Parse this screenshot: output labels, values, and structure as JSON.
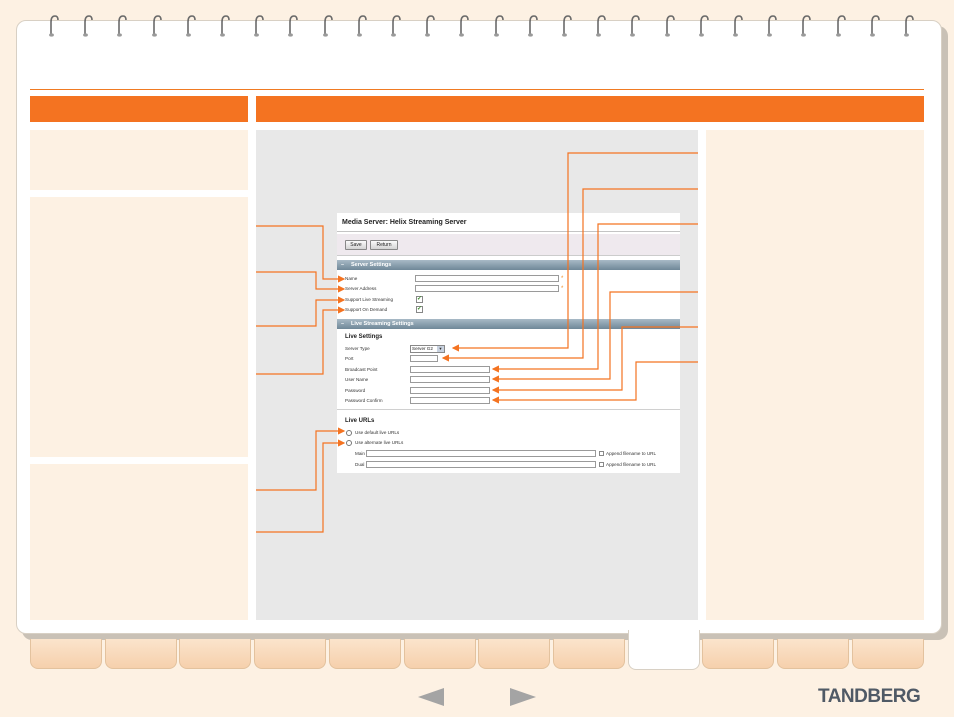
{
  "colors": {
    "accent": "#f47321",
    "panel": "#fdf1e3",
    "page": "#ffffff",
    "screenshot_area": "#e8e8e8",
    "section_header": "#6f8898",
    "check_green": "#3a8a2a"
  },
  "screenshot": {
    "title": "Media Server: Helix Streaming Server",
    "buttons": {
      "save": "Save",
      "return": "Return"
    },
    "server_settings": {
      "header": "Server Settings",
      "fields": [
        {
          "label": "Name",
          "value": "",
          "required": "*"
        },
        {
          "label": "Server Address",
          "value": "",
          "required": "*"
        }
      ],
      "checkboxes": [
        {
          "label": "Support Live Streaming",
          "checked": true
        },
        {
          "label": "Support On Demand",
          "checked": true
        }
      ]
    },
    "live_streaming_settings": {
      "header": "Live Streaming Settings",
      "subheader": "Live Settings",
      "server_type_label": "Server Type",
      "server_type_value": "Server G2",
      "fields": [
        {
          "label": "Port",
          "value": ""
        },
        {
          "label": "Broadcast Point",
          "value": ""
        },
        {
          "label": "User Name",
          "value": ""
        },
        {
          "label": "Password",
          "value": ""
        },
        {
          "label": "Password Confirm",
          "value": ""
        }
      ]
    },
    "live_urls": {
      "subheader": "Live URLs",
      "options": [
        "Use default live URLs",
        "Use alternate live URLs"
      ],
      "rows": [
        {
          "label": "Main",
          "value": "",
          "append_label": "Append filename to URL"
        },
        {
          "label": "Dual",
          "value": "",
          "append_label": "Append filename to URL"
        }
      ]
    }
  },
  "icons": {
    "prev": "arrow-left-icon",
    "next": "arrow-right-icon",
    "ring": "binder-ring-icon",
    "collapse": "section-minus-icon",
    "check": "checkmark-icon",
    "dropdown": "chevron-down-icon"
  },
  "footer": {
    "brand": "TANDBERG",
    "active_tab_index": 8,
    "tab_count": 12
  }
}
